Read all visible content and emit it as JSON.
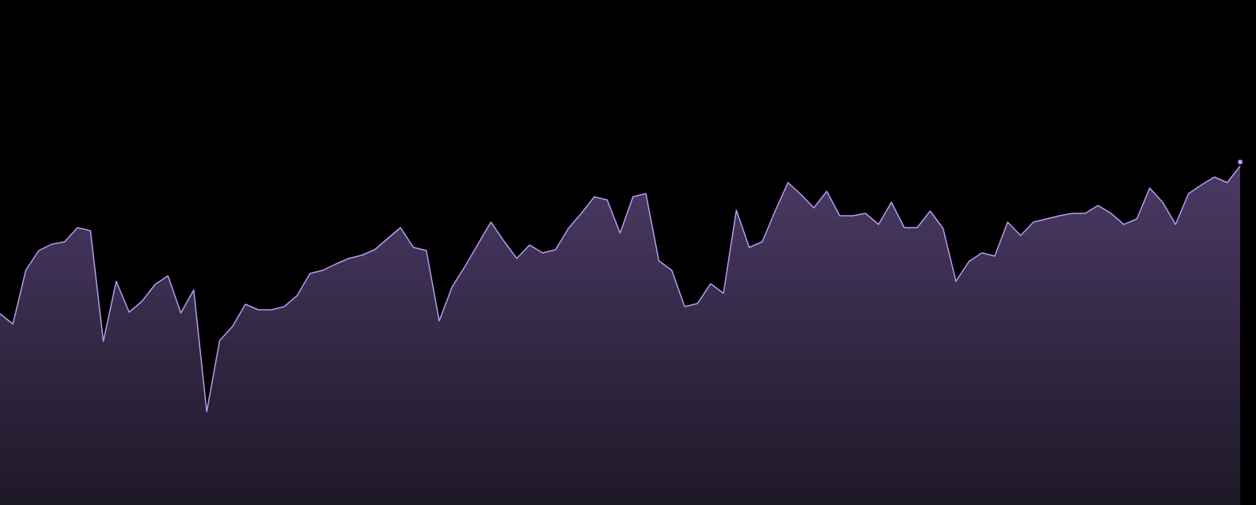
{
  "chart_data": {
    "type": "area",
    "color": "#b89cf0",
    "values": [
      242,
      229,
      297,
      322,
      330,
      333,
      351,
      347,
      207,
      283,
      244,
      258,
      279,
      290,
      243,
      272,
      118,
      208,
      226,
      254,
      247,
      247,
      251,
      265,
      293,
      297,
      305,
      312,
      316,
      323,
      337,
      351,
      326,
      322,
      233,
      276,
      302,
      330,
      358,
      334,
      312,
      329,
      319,
      323,
      350,
      369,
      390,
      386,
      344,
      390,
      394,
      309,
      297,
      251,
      255,
      280,
      268,
      373,
      326,
      333,
      372,
      408,
      393,
      376,
      397,
      366,
      366,
      369,
      355,
      383,
      351,
      351,
      372,
      350,
      283,
      308,
      319,
      315,
      358,
      341,
      358,
      362,
      366,
      369,
      369,
      379,
      369,
      355,
      362,
      401,
      383,
      355,
      394,
      405,
      415,
      408,
      429
    ],
    "ylim": [
      0,
      639
    ]
  }
}
